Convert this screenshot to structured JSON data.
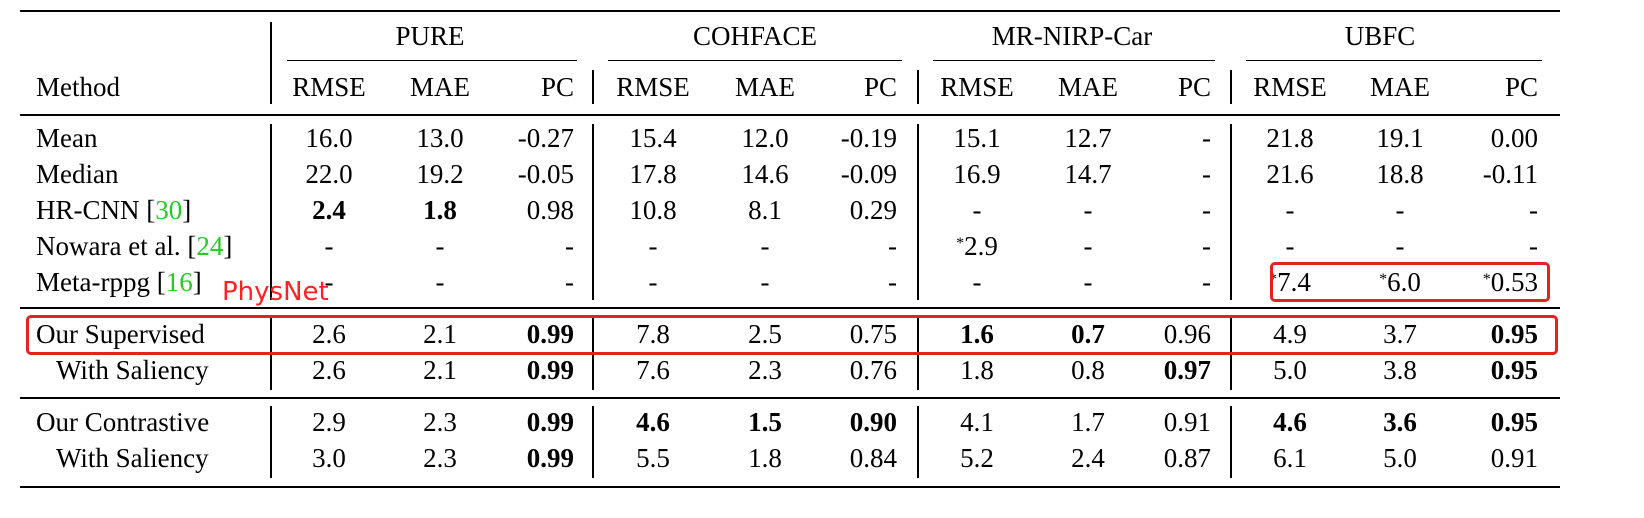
{
  "header": {
    "method_label": "Method",
    "datasets": [
      "PURE",
      "COHFACE",
      "MR-NIRP-Car",
      "UBFC"
    ],
    "metrics": [
      "RMSE",
      "MAE",
      "PC"
    ]
  },
  "rows": [
    {
      "method": "Mean",
      "ref": "",
      "cells": [
        [
          "16.0",
          "",
          ""
        ],
        [
          "13.0",
          "",
          ""
        ],
        [
          "-0.27",
          "",
          ""
        ],
        [
          "15.4",
          "",
          ""
        ],
        [
          "12.0",
          "",
          ""
        ],
        [
          "-0.19",
          "",
          ""
        ],
        [
          "15.1",
          "",
          ""
        ],
        [
          "12.7",
          "",
          ""
        ],
        [
          "-",
          "",
          ""
        ],
        [
          "21.8",
          "",
          ""
        ],
        [
          "19.1",
          "",
          ""
        ],
        [
          "0.00",
          "",
          ""
        ]
      ]
    },
    {
      "method": "Median",
      "ref": "",
      "cells": [
        [
          "22.0",
          "",
          ""
        ],
        [
          "19.2",
          "",
          ""
        ],
        [
          "-0.05",
          "",
          ""
        ],
        [
          "17.8",
          "",
          ""
        ],
        [
          "14.6",
          "",
          ""
        ],
        [
          "-0.09",
          "",
          ""
        ],
        [
          "16.9",
          "",
          ""
        ],
        [
          "14.7",
          "",
          ""
        ],
        [
          "-",
          "",
          ""
        ],
        [
          "21.6",
          "",
          ""
        ],
        [
          "18.8",
          "",
          ""
        ],
        [
          "-0.11",
          "",
          ""
        ]
      ]
    },
    {
      "method": "HR-CNN [",
      "ref": "30",
      "cells": [
        [
          "2.4",
          "b",
          ""
        ],
        [
          "1.8",
          "b",
          ""
        ],
        [
          "0.98",
          "",
          ""
        ],
        [
          "10.8",
          "",
          ""
        ],
        [
          "8.1",
          "",
          ""
        ],
        [
          "0.29",
          "",
          ""
        ],
        [
          "-",
          "",
          ""
        ],
        [
          "-",
          "",
          ""
        ],
        [
          "-",
          "",
          ""
        ],
        [
          "-",
          "",
          ""
        ],
        [
          "-",
          "",
          ""
        ],
        [
          "-",
          "",
          ""
        ]
      ]
    },
    {
      "method": "Nowara et al. [",
      "ref": "24",
      "cells": [
        [
          "-",
          "",
          ""
        ],
        [
          "-",
          "",
          ""
        ],
        [
          "-",
          "",
          ""
        ],
        [
          "-",
          "",
          ""
        ],
        [
          "-",
          "",
          ""
        ],
        [
          "-",
          "",
          ""
        ],
        [
          "2.9",
          "",
          "*"
        ],
        [
          "-",
          "",
          ""
        ],
        [
          "-",
          "",
          ""
        ],
        [
          "-",
          "",
          ""
        ],
        [
          "-",
          "",
          ""
        ],
        [
          "-",
          "",
          ""
        ]
      ]
    },
    {
      "method": "Meta-rppg [",
      "ref": "16",
      "cells": [
        [
          "-",
          "",
          ""
        ],
        [
          "-",
          "",
          ""
        ],
        [
          "-",
          "",
          ""
        ],
        [
          "-",
          "",
          ""
        ],
        [
          "-",
          "",
          ""
        ],
        [
          "-",
          "",
          ""
        ],
        [
          "-",
          "",
          ""
        ],
        [
          "-",
          "",
          ""
        ],
        [
          "-",
          "",
          ""
        ],
        [
          "7.4",
          "",
          "*"
        ],
        [
          "6.0",
          "",
          "*"
        ],
        [
          "0.53",
          "",
          "*"
        ]
      ]
    },
    {
      "method": "Our Supervised",
      "ref": "",
      "cells": [
        [
          "2.6",
          "",
          ""
        ],
        [
          "2.1",
          "",
          ""
        ],
        [
          "0.99",
          "b",
          ""
        ],
        [
          "7.8",
          "",
          ""
        ],
        [
          "2.5",
          "",
          ""
        ],
        [
          "0.75",
          "",
          ""
        ],
        [
          "1.6",
          "b",
          ""
        ],
        [
          "0.7",
          "b",
          ""
        ],
        [
          "0.96",
          "",
          ""
        ],
        [
          "4.9",
          "",
          ""
        ],
        [
          "3.7",
          "",
          ""
        ],
        [
          "0.95",
          "b",
          ""
        ]
      ]
    },
    {
      "method": "With Saliency",
      "ref": "",
      "cells": [
        [
          "2.6",
          "",
          ""
        ],
        [
          "2.1",
          "",
          ""
        ],
        [
          "0.99",
          "b",
          ""
        ],
        [
          "7.6",
          "",
          ""
        ],
        [
          "2.3",
          "",
          ""
        ],
        [
          "0.76",
          "",
          ""
        ],
        [
          "1.8",
          "",
          ""
        ],
        [
          "0.8",
          "",
          ""
        ],
        [
          "0.97",
          "b",
          ""
        ],
        [
          "5.0",
          "",
          ""
        ],
        [
          "3.8",
          "",
          ""
        ],
        [
          "0.95",
          "b",
          ""
        ]
      ]
    },
    {
      "method": "Our Contrastive",
      "ref": "",
      "cells": [
        [
          "2.9",
          "",
          ""
        ],
        [
          "2.3",
          "",
          ""
        ],
        [
          "0.99",
          "b",
          ""
        ],
        [
          "4.6",
          "b",
          ""
        ],
        [
          "1.5",
          "b",
          ""
        ],
        [
          "0.90",
          "b",
          ""
        ],
        [
          "4.1",
          "",
          ""
        ],
        [
          "1.7",
          "",
          ""
        ],
        [
          "0.91",
          "",
          ""
        ],
        [
          "4.6",
          "b",
          ""
        ],
        [
          "3.6",
          "b",
          ""
        ],
        [
          "0.95",
          "b",
          ""
        ]
      ]
    },
    {
      "method": "With Saliency",
      "ref": "",
      "cells": [
        [
          "3.0",
          "",
          ""
        ],
        [
          "2.3",
          "",
          ""
        ],
        [
          "0.99",
          "b",
          ""
        ],
        [
          "5.5",
          "",
          ""
        ],
        [
          "1.8",
          "",
          ""
        ],
        [
          "0.84",
          "",
          ""
        ],
        [
          "5.2",
          "",
          ""
        ],
        [
          "2.4",
          "",
          ""
        ],
        [
          "0.87",
          "",
          ""
        ],
        [
          "6.1",
          "",
          ""
        ],
        [
          "5.0",
          "",
          ""
        ],
        [
          "0.91",
          "",
          ""
        ]
      ]
    }
  ],
  "annotation": {
    "physnet_label": "PhysNet"
  },
  "colors": {
    "ref_green": "#22cc22",
    "highlight_red": "#e52222"
  }
}
